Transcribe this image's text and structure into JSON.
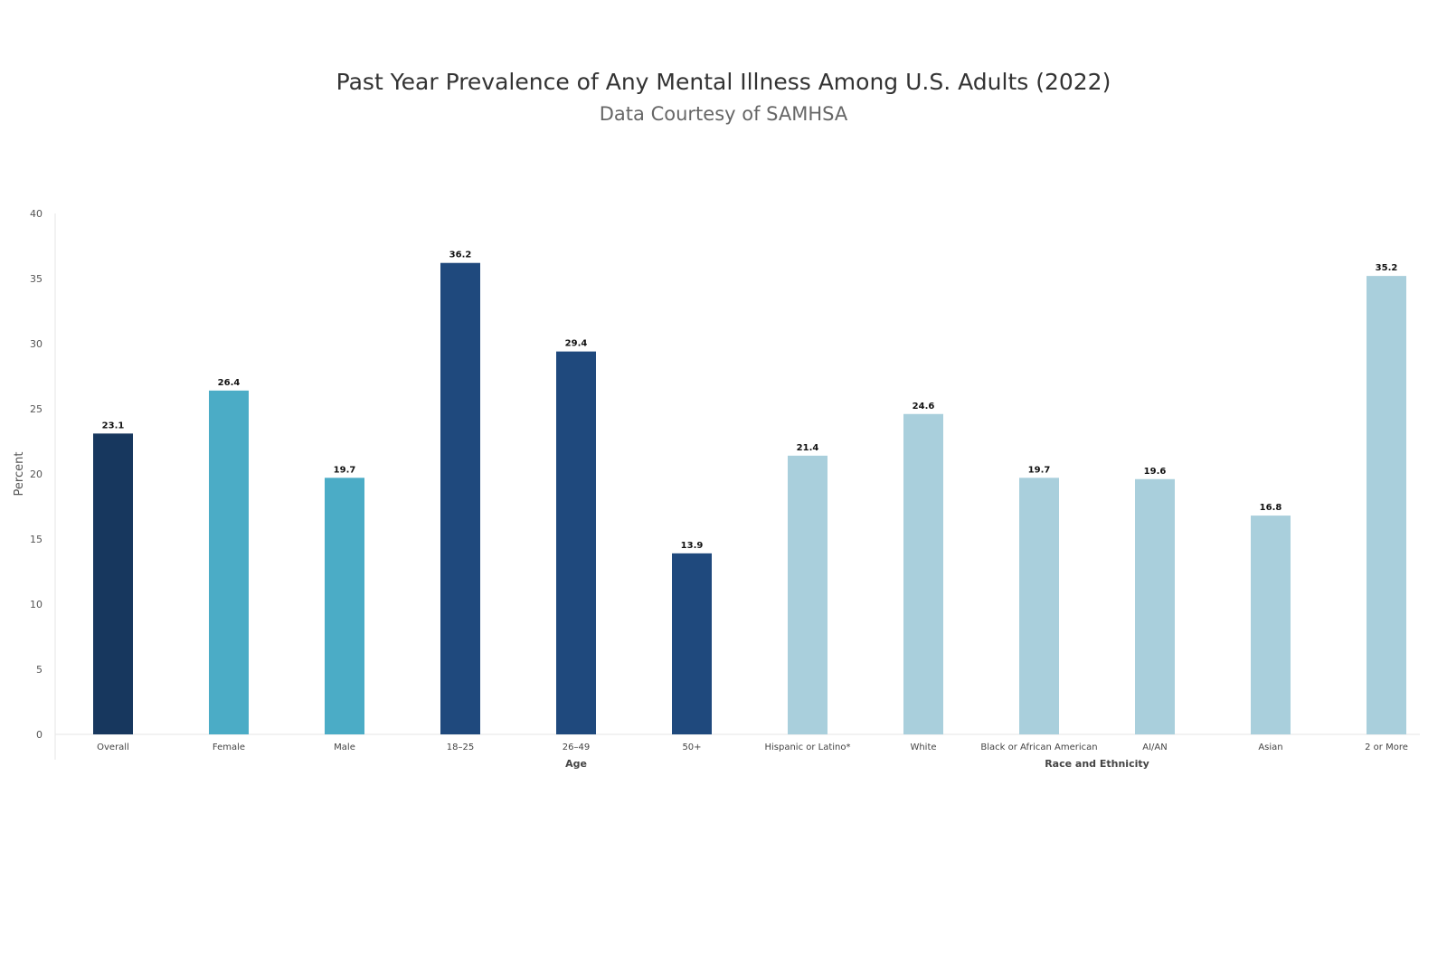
{
  "chart_data": {
    "type": "bar",
    "title": "Past Year Prevalence of Any Mental Illness Among U.S. Adults (2022)",
    "subtitle": "Data Courtesy of SAMHSA",
    "ylabel": "Percent",
    "ylim": [
      0,
      40
    ],
    "yticks": [
      0,
      5,
      10,
      15,
      20,
      25,
      30,
      35,
      40
    ],
    "grid": false,
    "categories": [
      "Overall",
      "Female",
      "Male",
      "18–25",
      "26–49",
      "50+",
      "Hispanic or Latino*",
      "White",
      "Black or African American",
      "AI/AN",
      "Asian",
      "2 or More"
    ],
    "values": [
      23.1,
      26.4,
      19.7,
      36.2,
      29.4,
      13.9,
      21.4,
      24.6,
      19.7,
      19.6,
      16.8,
      35.2
    ],
    "data_labels": [
      "23.1",
      "26.4",
      "19.7",
      "36.2",
      "29.4",
      "13.9",
      "21.4",
      "24.6",
      "19.7",
      "19.6",
      "16.8",
      "35.2"
    ],
    "colors": [
      "#17375e",
      "#4bacc6",
      "#4bacc6",
      "#1f497d",
      "#1f497d",
      "#1f497d",
      "#a9cfdc",
      "#a9cfdc",
      "#a9cfdc",
      "#a9cfdc",
      "#a9cfdc",
      "#a9cfdc"
    ],
    "groups": [
      {
        "label": "Age",
        "categories": [
          "18–25",
          "26–49",
          "50+"
        ]
      },
      {
        "label": "Race and Ethnicity",
        "categories": [
          "Hispanic or Latino*",
          "White",
          "Black or African American",
          "AI/AN",
          "Asian",
          "2 or More"
        ]
      }
    ]
  }
}
